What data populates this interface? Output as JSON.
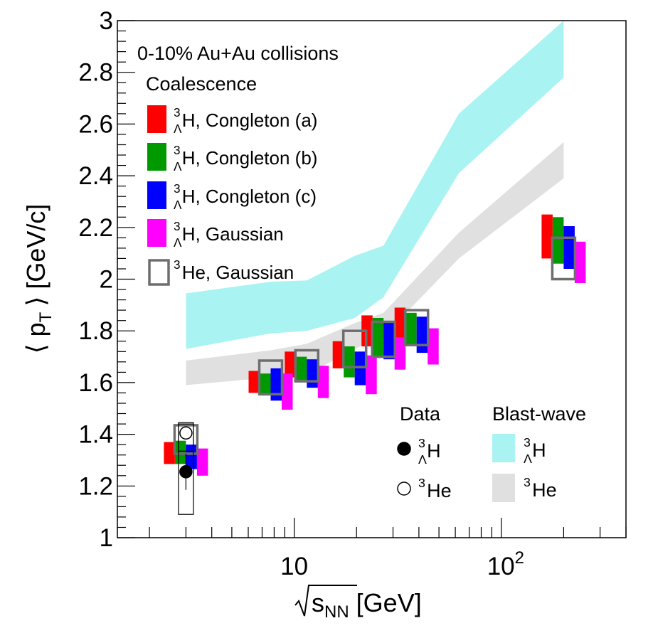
{
  "chart_data": {
    "type": "scatter",
    "title": "0-10% Au+Au collisions",
    "xlabel": "√s_NN [GeV]",
    "xlabel_main": "s",
    "xlabel_sub": "NN",
    "xlabel_unit": "[GeV]",
    "ylabel": "⟨ p_T ⟩ [GeV/c]",
    "ylabel_open": "⟨ p",
    "ylabel_sub": "T",
    "ylabel_close": "⟩ [GeV/c]",
    "x_scale": "log",
    "xlim": [
      1.4,
      400
    ],
    "ylim": [
      1,
      3
    ],
    "x_tick_labels": [
      {
        "value": 10,
        "text": "10"
      },
      {
        "value": 100,
        "base": "10",
        "exp": "2"
      }
    ],
    "y_ticks": [
      1,
      1.2,
      1.4,
      1.6,
      1.8,
      2,
      2.2,
      2.4,
      2.6,
      2.8,
      3
    ],
    "y_tick_labels": [
      "1",
      "1.2",
      "1.4",
      "1.6",
      "1.8",
      "2",
      "2.2",
      "2.4",
      "2.6",
      "2.8",
      "3"
    ],
    "energies": [
      3.0,
      7.7,
      11.5,
      19.6,
      27,
      39,
      200
    ],
    "legend_coalescence": {
      "title": "0-10% Au+Au collisions",
      "subtitle": "Coalescence",
      "entries": [
        {
          "key": "congleton_a",
          "pre": "3",
          "sub": "Λ",
          "text": "H, Congleton (a)",
          "color": "#ff0000",
          "kind": "box"
        },
        {
          "key": "congleton_b",
          "pre": "3",
          "sub": "Λ",
          "text": "H, Congleton (b)",
          "color": "#009900",
          "kind": "box"
        },
        {
          "key": "congleton_c",
          "pre": "3",
          "sub": "Λ",
          "text": "H, Congleton (c)",
          "color": "#0000ff",
          "kind": "box"
        },
        {
          "key": "gaussian_h",
          "pre": "3",
          "sub": "Λ",
          "text": "H, Gaussian",
          "color": "#ff00ff",
          "kind": "box"
        },
        {
          "key": "gaussian_he",
          "pre": "3",
          "sub": "",
          "text": "He, Gaussian",
          "color": "#6e6e6e",
          "kind": "outline"
        }
      ]
    },
    "legend_data": {
      "title": "Data",
      "entries": [
        {
          "pre": "3",
          "sub": "Λ",
          "text": "H",
          "marker": "filled"
        },
        {
          "pre": "3",
          "sub": "",
          "text": "He",
          "marker": "open"
        }
      ]
    },
    "legend_blastwave": {
      "title": "Blast-wave",
      "entries": [
        {
          "pre": "3",
          "sub": "Λ",
          "text": "H",
          "color": "#aaf3f3"
        },
        {
          "pre": "3",
          "sub": "",
          "text": "He",
          "color": "#e0e0e0"
        }
      ]
    },
    "coalescence_series": [
      {
        "name": "3ΛH, Congleton (a)",
        "color": "#ff0000",
        "kind": "box",
        "offset": -1.5,
        "ranges": [
          [
            1.285,
            1.37
          ],
          [
            1.56,
            1.645
          ],
          [
            1.62,
            1.72
          ],
          [
            1.655,
            1.76
          ],
          [
            1.74,
            1.86
          ],
          [
            1.765,
            1.89
          ],
          [
            2.08,
            2.25
          ]
        ]
      },
      {
        "name": "3ΛH, Congleton (b)",
        "color": "#009900",
        "kind": "box",
        "offset": -0.5,
        "ranges": [
          [
            1.285,
            1.375
          ],
          [
            1.55,
            1.635
          ],
          [
            1.61,
            1.7
          ],
          [
            1.62,
            1.74
          ],
          [
            1.7,
            1.85
          ],
          [
            1.745,
            1.87
          ],
          [
            2.06,
            2.24
          ]
        ]
      },
      {
        "name": "3ΛH, Congleton (c)",
        "color": "#0000ff",
        "kind": "box",
        "offset": 0.5,
        "ranges": [
          [
            1.265,
            1.36
          ],
          [
            1.53,
            1.655
          ],
          [
            1.58,
            1.69
          ],
          [
            1.59,
            1.72
          ],
          [
            1.69,
            1.835
          ],
          [
            1.715,
            1.855
          ],
          [
            2.04,
            2.205
          ]
        ]
      },
      {
        "name": "3ΛH, Gaussian",
        "color": "#ff00ff",
        "kind": "box",
        "offset": 1.5,
        "ranges": [
          [
            1.24,
            1.345
          ],
          [
            1.495,
            1.635
          ],
          [
            1.54,
            1.665
          ],
          [
            1.555,
            1.705
          ],
          [
            1.65,
            1.775
          ],
          [
            1.67,
            1.81
          ],
          [
            1.985,
            2.145
          ]
        ]
      },
      {
        "name": "3He, Gaussian",
        "color": "#6e6e6e",
        "kind": "outline",
        "offset": 0,
        "ranges": [
          [
            1.325,
            1.435
          ],
          [
            1.555,
            1.685
          ],
          [
            1.605,
            1.725
          ],
          [
            1.66,
            1.8
          ],
          [
            1.7,
            1.835
          ],
          [
            1.745,
            1.88
          ],
          [
            2.0,
            2.16
          ]
        ]
      }
    ],
    "blastwave_bands": [
      {
        "name": "3ΛH blast-wave",
        "color": "#aaf3f3",
        "x": [
          3.0,
          7.7,
          11.5,
          19.6,
          27,
          62.4,
          200
        ],
        "low": [
          1.73,
          1.79,
          1.8,
          1.85,
          1.93,
          2.41,
          2.78
        ],
        "high": [
          1.945,
          1.99,
          1.995,
          2.09,
          2.13,
          2.64,
          3.0
        ]
      },
      {
        "name": "3He blast-wave",
        "color": "#e0e0e0",
        "x": [
          3.0,
          7.7,
          11.5,
          19.6,
          27,
          62.4,
          200
        ],
        "low": [
          1.59,
          1.62,
          1.63,
          1.73,
          1.78,
          2.08,
          2.39
        ],
        "high": [
          1.685,
          1.725,
          1.75,
          1.83,
          1.87,
          2.18,
          2.53
        ]
      }
    ],
    "data_points": [
      {
        "name": "3ΛH data",
        "marker": "filled",
        "x": 3.0,
        "y": 1.255,
        "stat_err": 0.07,
        "sys_low": 1.09,
        "sys_high": 1.445
      },
      {
        "name": "3He data",
        "marker": "open",
        "x": 3.0,
        "y": 1.405,
        "stat_err": 0.012,
        "sys_low": 1.335,
        "sys_high": 1.44
      }
    ]
  }
}
